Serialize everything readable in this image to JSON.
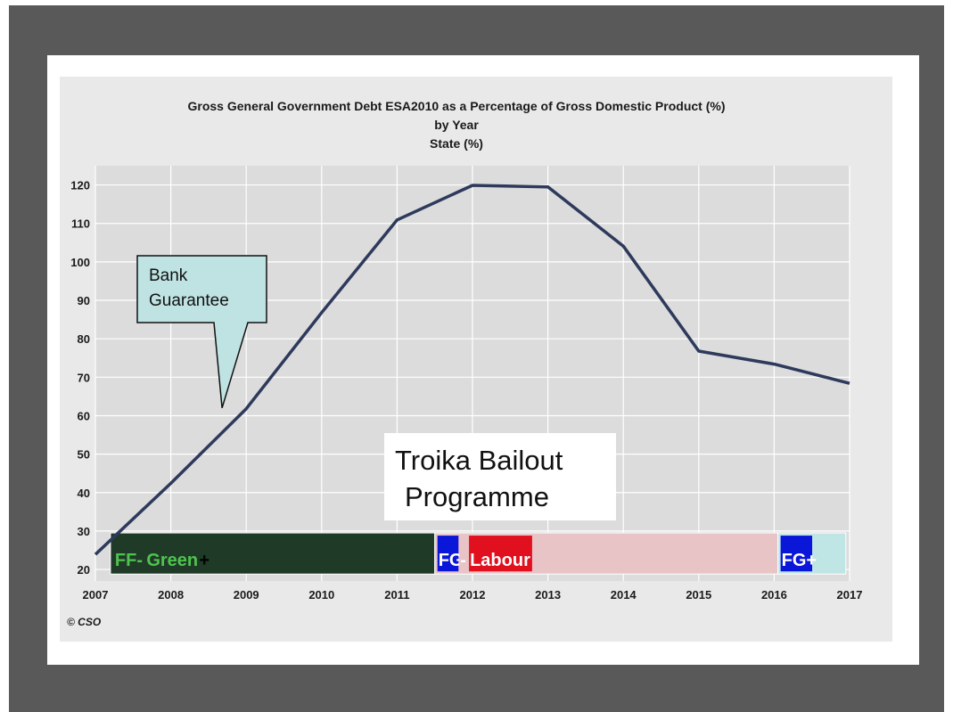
{
  "chart_data": {
    "type": "line",
    "title": "Gross General Government Debt ESA2010 as a Percentage of Gross Domestic Product (%)",
    "subtitle1": "by Year",
    "subtitle2": "State (%)",
    "x": [
      2007,
      2008,
      2009,
      2010,
      2011,
      2012,
      2013,
      2014,
      2015,
      2016,
      2017
    ],
    "xticks": [
      "2007",
      "2008",
      "2009",
      "2010",
      "2011",
      "2012",
      "2013",
      "2014",
      "2015",
      "2016",
      "2017"
    ],
    "yticks": [
      "20",
      "30",
      "40",
      "50",
      "60",
      "70",
      "80",
      "90",
      "100",
      "110",
      "120"
    ],
    "ylim": [
      17,
      125
    ],
    "xlim": [
      2007,
      2017
    ],
    "grid": true,
    "series": [
      {
        "values": [
          23.9,
          42.4,
          61.8,
          86.8,
          110.9,
          119.9,
          119.5,
          104.1,
          76.8,
          73.4,
          68.4
        ],
        "color": "#2e3a5c"
      }
    ],
    "source": "© CSO"
  },
  "annotations": {
    "callout": {
      "line1": "Bank",
      "line2": "Guarantee",
      "pointer_year": 2008.68,
      "pointer_value": 62
    },
    "troika": {
      "line1": "Troika Bailout",
      "line2": "Programme"
    }
  },
  "government_bands": [
    {
      "from": 2007.2,
      "to": 2011.5,
      "fill": "#1f3a27",
      "parts": [
        {
          "text": "FF-",
          "color": "#4fc34f"
        },
        {
          "text": "Green",
          "color": "#4fc34f"
        },
        {
          "text": "+",
          "color": "#000000"
        }
      ]
    },
    {
      "from": 2011.5,
      "to": 2016.05,
      "fill": "#e8c4c6",
      "parts": [
        {
          "text": "FG",
          "color": "#ffffff",
          "bg": "#0a16d8"
        },
        {
          "text": "-",
          "color": "#ffffff",
          "bg": "#e8c4c6"
        },
        {
          "text": "Labour",
          "color": "#ffffff",
          "bg": "#e0101e"
        }
      ]
    },
    {
      "from": 2016.05,
      "to": 2016.95,
      "fill": "#bfe6e4",
      "parts": [
        {
          "text": "FG+",
          "color": "#ffffff",
          "bg": "#0a16d8"
        }
      ]
    }
  ],
  "colors": {
    "frame": "#595959",
    "panel": "#e9e9e9",
    "grid": "#ffffff",
    "callout_fill": "#bfe3e3"
  }
}
